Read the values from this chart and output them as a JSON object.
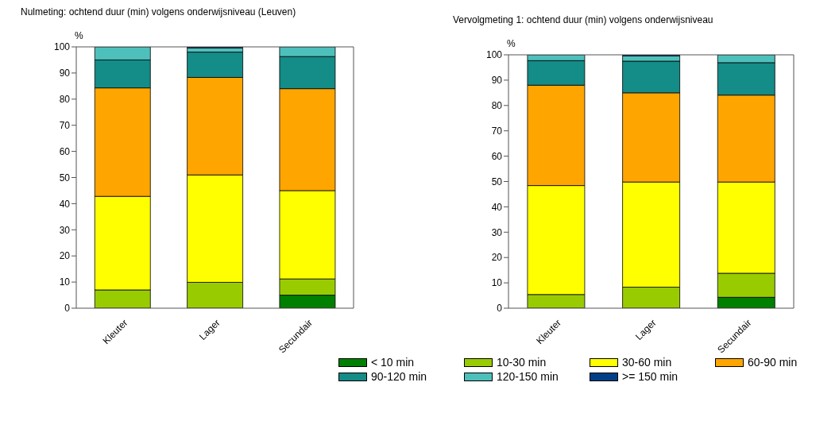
{
  "chart_data": [
    {
      "type": "bar",
      "stacked": true,
      "title": "Nulmeting: ochtend duur (min) volgens onderwijsniveau (Leuven)",
      "ylabel": "%",
      "categories": [
        "Kleuter",
        "Lager",
        "Secundair"
      ],
      "ylim": [
        0,
        100
      ],
      "yticks": [
        0,
        10,
        20,
        30,
        40,
        50,
        60,
        70,
        80,
        90,
        100
      ],
      "grid": false,
      "legend": false,
      "series": [
        {
          "color": "#008000",
          "values": [
            0,
            0,
            5
          ]
        },
        {
          "color": "#99cc00",
          "values": [
            7,
            9.9,
            6.2
          ]
        },
        {
          "color": "#ffff00",
          "values": [
            35.8,
            41.1,
            33.8
          ]
        },
        {
          "color": "#ffa500",
          "values": [
            41.5,
            37.3,
            39
          ]
        },
        {
          "color": "#148c88",
          "values": [
            10.7,
            9.7,
            12.3
          ]
        },
        {
          "color": "#4ec0bc",
          "values": [
            5,
            1.6,
            3.7
          ]
        },
        {
          "color": "#003f87",
          "values": [
            0,
            0.4,
            0
          ]
        }
      ]
    },
    {
      "type": "bar",
      "stacked": true,
      "title": "Vervolgmeting 1: ochtend duur (min) volgens onderwijsniveau",
      "ylabel": "%",
      "categories": [
        "Kleuter",
        "Lager",
        "Secundair"
      ],
      "ylim": [
        0,
        100
      ],
      "yticks": [
        0,
        10,
        20,
        30,
        40,
        50,
        60,
        70,
        80,
        90,
        100
      ],
      "grid": false,
      "legend": "bottom",
      "series": [
        {
          "name": "< 10 min",
          "color": "#008000",
          "values": [
            0,
            0,
            4.3
          ]
        },
        {
          "name": "10-30 min",
          "color": "#99cc00",
          "values": [
            5.4,
            8.3,
            9.5
          ]
        },
        {
          "name": "30-60 min",
          "color": "#ffff00",
          "values": [
            43,
            41.5,
            36
          ]
        },
        {
          "name": "60-90 min",
          "color": "#ffa500",
          "values": [
            39.6,
            35.2,
            34.3
          ]
        },
        {
          "name": "90-120 min",
          "color": "#148c88",
          "values": [
            9.7,
            12.5,
            12.8
          ]
        },
        {
          "name": "120-150 min",
          "color": "#4ec0bc",
          "values": [
            2.3,
            2.1,
            3.1
          ]
        },
        {
          "name": ">= 150 min",
          "color": "#003f87",
          "values": [
            0,
            0.4,
            0
          ]
        }
      ]
    }
  ]
}
